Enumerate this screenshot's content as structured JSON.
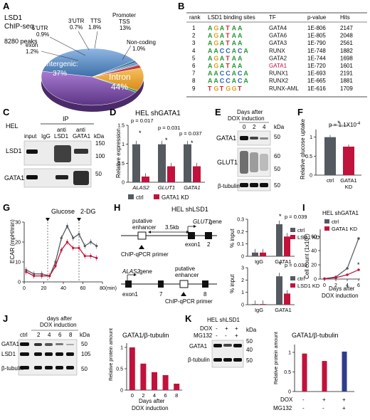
{
  "panels": {
    "A": "A",
    "B": "B",
    "C": "C",
    "D": "D",
    "E": "E",
    "F": "F",
    "G": "G",
    "H": "H",
    "I": "I",
    "J": "J",
    "K": "K"
  },
  "colors": {
    "ctrl": "#555a61",
    "kd": "#c0123c",
    "intron": "#7b4fa8",
    "intergenic": "#5b8fc9",
    "exon": "#2e7b9a",
    "promoter": "#e8a02f",
    "noncoding": "#2f9a4a",
    "tts": "#c63b3b",
    "utr3": "#4aa0c8",
    "utr5": "#6c6cae"
  },
  "A": {
    "title1": "LSD1",
    "title2": "ChIP-seq",
    "peaks": "8280 peaks",
    "labels": {
      "utr5": "5'UTR",
      "utr5_v": "0.9%",
      "utr3": "3'UTR",
      "utr3_v": "0.7%",
      "tts": "TTS",
      "tts_v": "1.8%",
      "promoter": "Promoter",
      "promoter2": "TSS",
      "promoter_v": "13%",
      "exon": "exon",
      "exon_v": "1.2%",
      "noncoding": "Non-coding",
      "noncoding_v": "1.0%",
      "intergenic": "Intergenic:",
      "intergenic_v": "37%",
      "intron": "Intron",
      "intron_v": "44%"
    },
    "chart_data": {
      "type": "pie",
      "categories": [
        "Intron",
        "Intergenic",
        "exon",
        "5'UTR",
        "3'UTR",
        "TTS",
        "Promoter TSS",
        "Non-coding"
      ],
      "values": [
        44,
        37,
        1.2,
        0.9,
        0.7,
        1.8,
        13,
        1.0
      ]
    }
  },
  "B": {
    "headers": [
      "rank",
      "LSD1 binding sites",
      "TF",
      "p-value",
      "Hits"
    ],
    "rows": [
      [
        "1",
        "GATA4",
        "1E-806",
        "2147"
      ],
      [
        "2",
        "GATA6",
        "1E-805",
        "2048"
      ],
      [
        "3",
        "GATA3",
        "1E-790",
        "2561"
      ],
      [
        "4",
        "RUNX",
        "1E-748",
        "1882"
      ],
      [
        "5",
        "GATA2",
        "1E-744",
        "1698"
      ],
      [
        "6",
        "GATA1",
        "1E-720",
        "1601"
      ],
      [
        "7",
        "RUNX1",
        "1E-693",
        "2191"
      ],
      [
        "8",
        "RUNX2",
        "1E-665",
        "1881"
      ],
      [
        "9",
        "RUNX-AML",
        "1E-616",
        "1709"
      ]
    ],
    "motifs": [
      "AGATAA",
      "AGATAA",
      "AGATAA",
      "AACCACA",
      "AGATAA",
      "AGATAA",
      "AACCACA",
      "AACCACA",
      "TGTGGT"
    ]
  },
  "C": {
    "hel": "HEL",
    "ip": "IP",
    "lanes": [
      "input",
      "IgG",
      "anti LSD1",
      "anti GATA1"
    ],
    "kda": "kDa",
    "rows": [
      "LSD1",
      "GATA1"
    ],
    "markers": [
      "150",
      "100",
      "50"
    ]
  },
  "D": {
    "title": "HEL shGATA1",
    "ylabel": "Relative expression",
    "p": [
      "p = 0.017",
      "p = 0.031",
      "p = 0.037"
    ],
    "star": "*",
    "ticks": [
      "0",
      "0.5",
      "1",
      "1.5"
    ],
    "legend": [
      "ctrl",
      "GATA1 KD"
    ],
    "chart_data": {
      "type": "bar",
      "categories": [
        "ALAS2",
        "GLUT1",
        "GATA1"
      ],
      "series": [
        {
          "name": "ctrl",
          "values": [
            1.0,
            1.0,
            1.0
          ]
        },
        {
          "name": "GATA1 KD",
          "values": [
            0.15,
            0.42,
            0.42
          ]
        }
      ],
      "ylim": [
        0,
        1.5
      ]
    }
  },
  "E": {
    "title1": "Days after",
    "title2": "DOX induction",
    "days": [
      "0",
      "2",
      "4"
    ],
    "kda": "kDa",
    "rows": [
      "GATA1",
      "GLUT1",
      "β-tubulin"
    ],
    "markers": [
      "50",
      "50",
      "50"
    ]
  },
  "F": {
    "ylabel": "Relative glucose uptake",
    "p": "p = 1.1X10",
    "pexp": "-4",
    "star": "*",
    "ticks": [
      "0",
      "0.5",
      "1"
    ],
    "cats": [
      "ctrl",
      "GATA1 KD"
    ],
    "chart_data": {
      "type": "bar",
      "categories": [
        "ctrl",
        "GATA1 KD"
      ],
      "values": [
        1.0,
        0.75
      ],
      "ylim": [
        0,
        1.2
      ]
    }
  },
  "G": {
    "ylabel": "ECAR (mpH/min)",
    "xlabel": "(min)",
    "glucose": "Glucose",
    "dg": "2-DG",
    "yticks": [
      "0",
      "10",
      "20",
      "30"
    ],
    "xticks": [
      "0",
      "20",
      "40",
      "60",
      "80"
    ],
    "chart_data": {
      "type": "line",
      "x": [
        2,
        10,
        18,
        26,
        32,
        38,
        44,
        50,
        56,
        62,
        68,
        74
      ],
      "series": [
        {
          "name": "ctrl",
          "values": [
            6,
            4,
            4,
            3,
            10,
            22,
            28,
            22,
            24,
            18,
            20,
            18
          ]
        },
        {
          "name": "GATA1 KD",
          "values": [
            5,
            3,
            3,
            3,
            8,
            16,
            20,
            17,
            17,
            13,
            13,
            12
          ]
        }
      ],
      "xlim": [
        0,
        80
      ],
      "ylim": [
        0,
        30
      ]
    }
  },
  "H": {
    "title": "HEL shLSD1",
    "putative": "putative",
    "enhancer": "enhancer",
    "dist": "3.5kb",
    "glut1": "GLUT1",
    "gene": "gene",
    "exon1": "exon1",
    "two": "2",
    "primer": "ChIP-qPCR primer",
    "alas2": "ALAS2",
    "gene2": "gene",
    "putative2": "putative",
    "enhancer2": "enhancer",
    "seven": "7",
    "eight": "8",
    "ylabel": "% input",
    "legend": [
      "ctrl",
      "LSD1 KD"
    ],
    "star": "*",
    "top": {
      "p": "p = 0.039",
      "ticks": [
        "0",
        "0.1",
        "0.2",
        "0.3"
      ],
      "cats": [
        "IgG",
        "GATA1"
      ],
      "chart_data": {
        "type": "bar",
        "categories": [
          "IgG",
          "GATA1"
        ],
        "series": [
          {
            "name": "ctrl",
            "values": [
              0.03,
              0.26
            ]
          },
          {
            "name": "LSD1 KD",
            "values": [
              0.03,
              0.16
            ]
          }
        ],
        "ylim": [
          0,
          0.3
        ]
      }
    },
    "bottom": {
      "p": "p = 0.038",
      "ticks": [
        "0",
        "1",
        "2",
        "3"
      ],
      "cats": [
        "IgG",
        "GATA1"
      ],
      "chart_data": {
        "type": "bar",
        "categories": [
          "IgG",
          "GATA1"
        ],
        "series": [
          {
            "name": "ctrl",
            "values": [
              0.05,
              2.3
            ]
          },
          {
            "name": "LSD1 KD",
            "values": [
              0.05,
              0.9
            ]
          }
        ],
        "ylim": [
          0,
          3
        ]
      }
    }
  },
  "I": {
    "title": "HEL shGATA1",
    "ylabel": "Cell count (1x10",
    "yexp": "6",
    "yclose": ")",
    "legend": [
      "ctrl",
      "GATA1 KD"
    ],
    "xlabel1": "Days after",
    "xlabel2": "DOX induction",
    "star": "*",
    "yticks": [
      "0",
      "20",
      "40",
      "60"
    ],
    "xticks": [
      "0",
      "2",
      "4",
      "6"
    ],
    "chart_data": {
      "type": "line",
      "x": [
        0,
        2,
        4,
        6
      ],
      "series": [
        {
          "name": "ctrl",
          "values": [
            0.5,
            3,
            15,
            57
          ]
        },
        {
          "name": "GATA1 KD",
          "values": [
            0.5,
            2,
            6,
            13
          ]
        }
      ],
      "xlim": [
        0,
        6
      ],
      "ylim": [
        0,
        70
      ]
    }
  },
  "J": {
    "title1": "days after",
    "title2": "DOX induction",
    "lanes": [
      "ctrl",
      "2",
      "4",
      "6",
      "8"
    ],
    "kda": "kDa",
    "rows": [
      "GATA1",
      "LSD1",
      "β-tubulin"
    ],
    "markers": [
      "50",
      "105",
      "50"
    ],
    "chart_title": "GATA1/β-tubulin",
    "ylabel": "Relative protein amount",
    "xlabel1": "Days after",
    "xlabel2": "DOX induction",
    "yticks": [
      "0",
      "0.5",
      "1"
    ],
    "chart_data": {
      "type": "bar",
      "categories": [
        "0",
        "2",
        "4",
        "6",
        "8"
      ],
      "values": [
        1.0,
        0.62,
        0.42,
        0.35,
        0.15
      ],
      "ylim": [
        0,
        1.1
      ]
    }
  },
  "K": {
    "title": "HEL shLSD1",
    "dox": "DOX",
    "mg": "MG132",
    "signs_dox": [
      "-",
      "+",
      "+"
    ],
    "signs_mg": [
      "-",
      "-",
      "+"
    ],
    "kda": "kDa",
    "rows": [
      "GATA1",
      "β-tubulin"
    ],
    "markers": [
      "50",
      "40",
      "50"
    ],
    "chart_title": "GATA1/β-tubulin",
    "ylabel": "Relative protein amount",
    "yticks": [
      "0",
      "0.5",
      "1"
    ],
    "chart_data": {
      "type": "bar",
      "categories": [
        "-/-",
        "+/-",
        "+/+"
      ],
      "values": [
        0.97,
        0.78,
        1.02
      ],
      "ylim": [
        0,
        1.2
      ]
    }
  }
}
